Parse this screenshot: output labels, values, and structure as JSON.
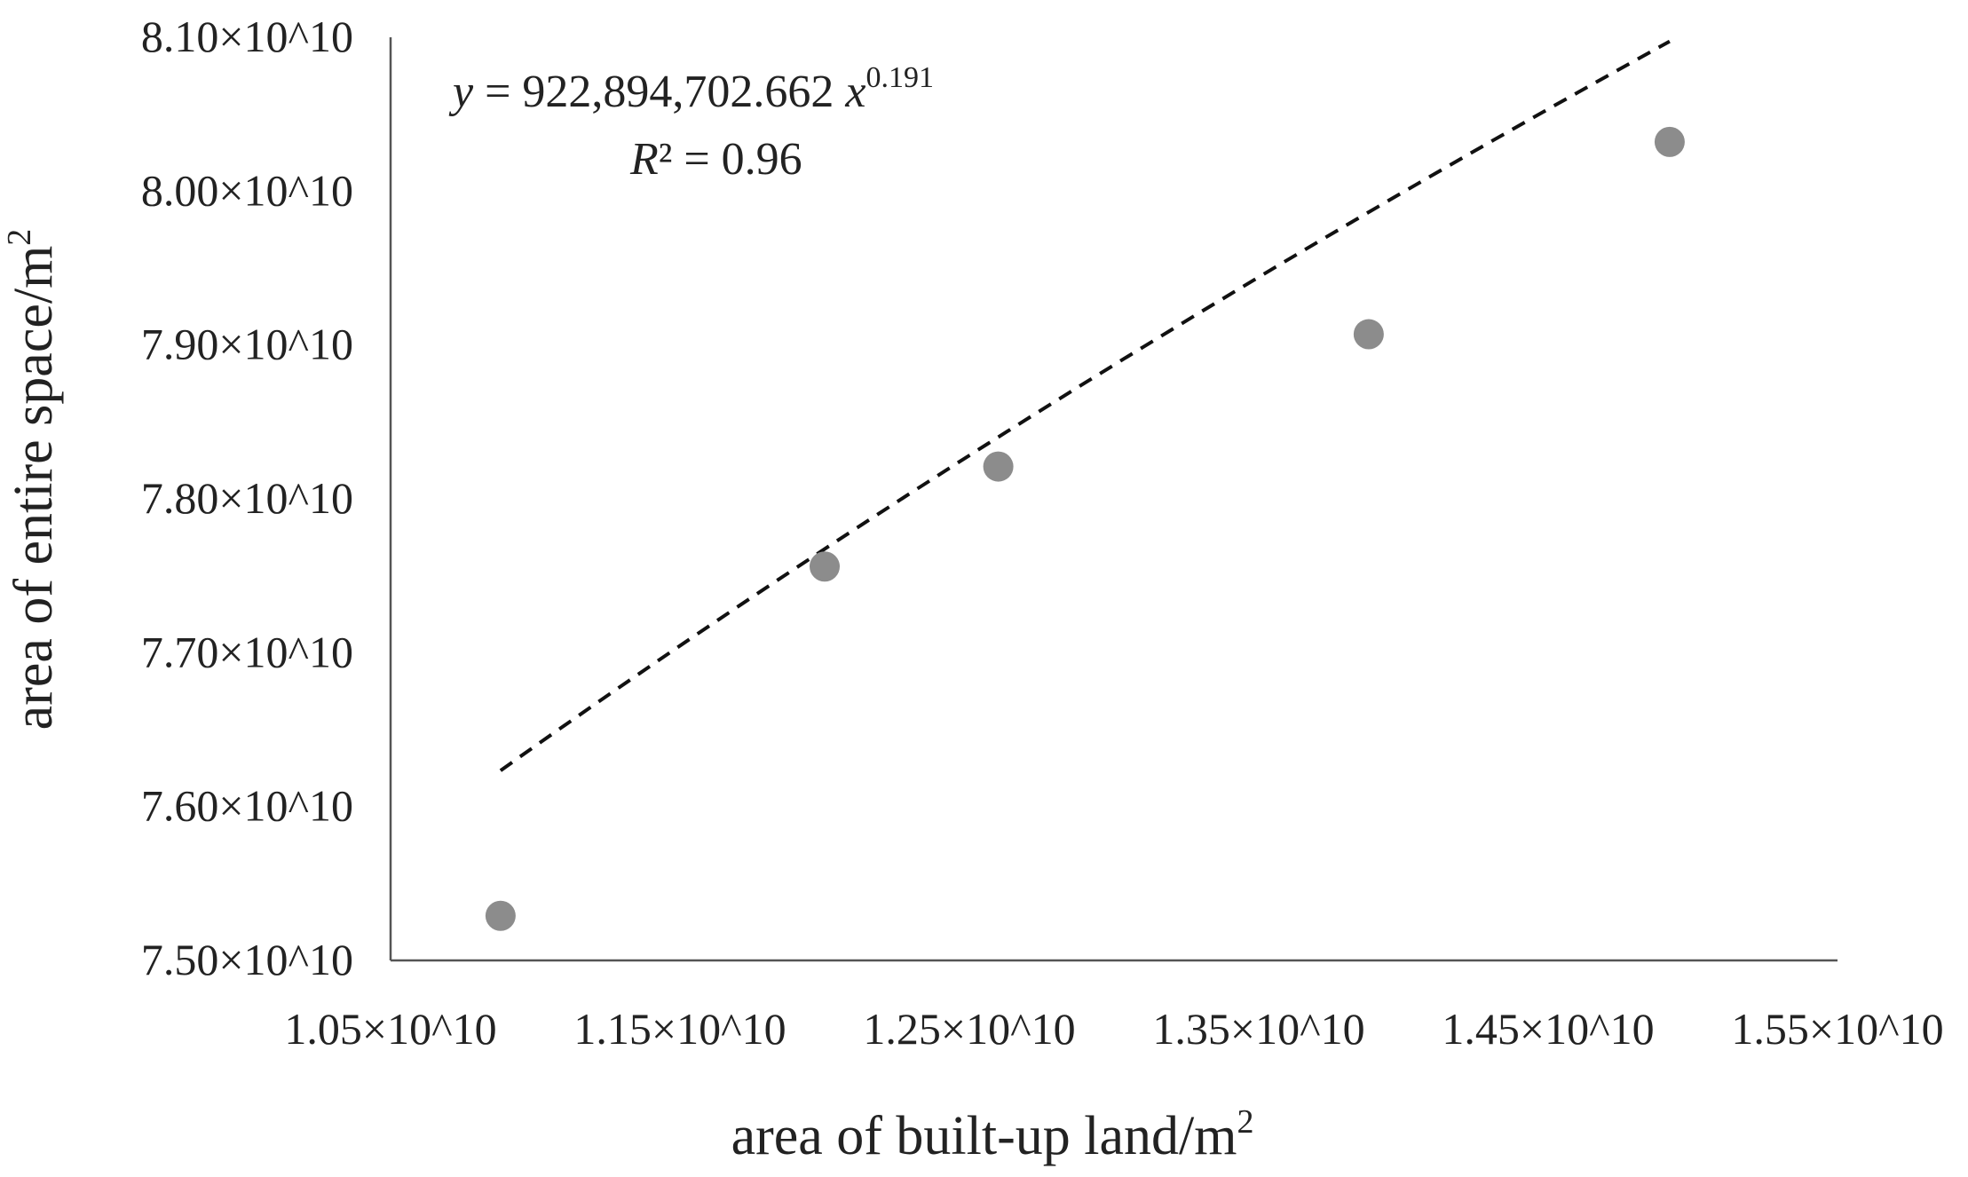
{
  "chart_data": {
    "type": "scatter",
    "title": "",
    "xlabel": "area of built-up land/m",
    "xlabel_sup": "2",
    "ylabel": "area of entire space/m",
    "ylabel_sup": "2",
    "xlim": [
      10500000000.0,
      15500000000.0
    ],
    "ylim": [
      75000000000.0,
      81000000000.0
    ],
    "x_ticks": [
      10500000000.0,
      11500000000.0,
      12500000000.0,
      13500000000.0,
      14500000000.0,
      15500000000.0
    ],
    "x_tick_labels": [
      "1.05×10^10",
      "1.15×10^10",
      "1.25×10^10",
      "1.35×10^10",
      "1.45×10^10",
      "1.55×10^10"
    ],
    "y_ticks": [
      75000000000.0,
      76000000000.0,
      77000000000.0,
      78000000000.0,
      79000000000.0,
      80000000000.0,
      81000000000.0
    ],
    "y_tick_labels": [
      "7.50×10^10",
      "7.60×10^10",
      "7.70×10^10",
      "7.80×10^10",
      "7.90×10^10",
      "8.00×10^10",
      "8.10×10^10"
    ],
    "grid": false,
    "series": [
      {
        "x": [
          10880000000.0,
          12000000000.0,
          12600000000.0,
          13880000000.0,
          14920000000.0
        ],
        "y": [
          75290000000.0,
          77560000000.0,
          78210000000.0,
          79070000000.0,
          80320000000.0
        ],
        "color": "#8c8c8c"
      }
    ],
    "trendline": {
      "kind": "power",
      "a": 922894702.662,
      "b": 0.191,
      "x_range": [
        10880000000.0,
        14920000000.0
      ],
      "style": "dashed",
      "color": "#111111"
    },
    "annotations": {
      "equation_y": "y",
      "equation_mid": " = 922,894,702.662 ",
      "equation_x": "x",
      "equation_exp": "0.191",
      "r2_R": "R",
      "r2_rest": "² = 0.96"
    }
  }
}
